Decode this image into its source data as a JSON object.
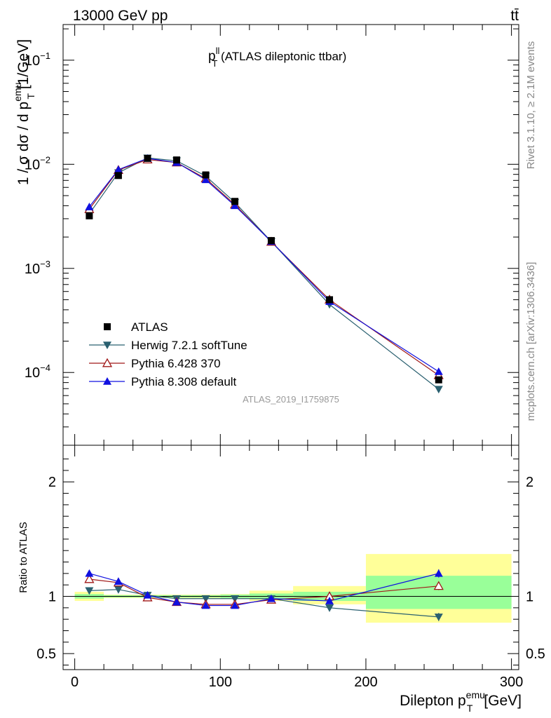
{
  "header": {
    "energy": "13000 GeV pp",
    "process": "tt̄"
  },
  "side_labels": {
    "rivet": "Rivet 3.1.10, ≥ 2.1M events",
    "mcplots": "mcplots.cern.ch [arXiv:1306.3436]"
  },
  "chart_data": [
    {
      "type": "scatter",
      "title_main": "p",
      "title_sup": "ll",
      "title_sub": "T",
      "title_rest": " (ATLAS dileptonic ttbar)",
      "ylabel": "1 / σ  dσ / d p",
      "ylabel_sup": "emu",
      "ylabel_sub": "T",
      "ylabel_unit": " [1/GeV]",
      "ylog": true,
      "ylim": [
        2e-05,
        0.22
      ],
      "xlim": [
        -8,
        305
      ],
      "y_ticks": [
        {
          "value": 0.1,
          "label": "10",
          "exp": "−1"
        },
        {
          "value": 0.01,
          "label": "10",
          "exp": "−2"
        },
        {
          "value": 0.001,
          "label": "10",
          "exp": "−3"
        },
        {
          "value": 0.0001,
          "label": "10",
          "exp": "−4"
        }
      ],
      "watermark": "ATLAS_2019_I1759875",
      "legend_position": "lower-left",
      "x": [
        10,
        30,
        50,
        70,
        90,
        110,
        135,
        175,
        250
      ],
      "series": [
        {
          "name": "ATLAS",
          "color": "#000000",
          "marker": "square",
          "values": [
            0.0032,
            0.0078,
            0.0114,
            0.011,
            0.0079,
            0.0044,
            0.00185,
            0.0005,
            8.5e-05
          ]
        },
        {
          "name": "Herwig 7.2.1 softTune",
          "color": "#2a6070",
          "marker": "triangle-down",
          "values": [
            0.00335,
            0.0083,
            0.0115,
            0.0108,
            0.0077,
            0.0043,
            0.00181,
            0.00045,
            6.9e-05
          ]
        },
        {
          "name": "Pythia 6.428 370",
          "color": "#a01818",
          "marker": "triangle-up-open",
          "values": [
            0.0037,
            0.0088,
            0.0111,
            0.0104,
            0.0073,
            0.0041,
            0.0018,
            0.0005,
            9.4e-05
          ]
        },
        {
          "name": "Pythia 8.308 default",
          "color": "#1010e0",
          "marker": "triangle-up",
          "values": [
            0.0039,
            0.0089,
            0.0114,
            0.0104,
            0.0071,
            0.004,
            0.00181,
            0.00048,
            0.000102
          ]
        }
      ]
    },
    {
      "type": "scatter",
      "ylabel": "Ratio to ATLAS",
      "ylim": [
        0.36,
        2.32
      ],
      "xlim": [
        -8,
        305
      ],
      "y_ticks": [
        {
          "value": 2,
          "label": "2"
        },
        {
          "value": 1,
          "label": "1"
        },
        {
          "value": 0.5,
          "label": "0.5"
        }
      ],
      "x_ticks": [
        0,
        100,
        200,
        300
      ],
      "xlabel": "Dilepton p",
      "xlabel_sup": "emu",
      "xlabel_sub": "T",
      "xlabel_unit": " [GeV]",
      "bins": [
        [
          0,
          20
        ],
        [
          20,
          40
        ],
        [
          40,
          60
        ],
        [
          60,
          80
        ],
        [
          80,
          100
        ],
        [
          100,
          120
        ],
        [
          120,
          150
        ],
        [
          150,
          200
        ],
        [
          200,
          300
        ]
      ],
      "band_stat": [
        [
          0.98,
          1.02
        ],
        [
          0.99,
          1.01
        ],
        [
          0.99,
          1.01
        ],
        [
          0.99,
          1.01
        ],
        [
          0.99,
          1.01
        ],
        [
          0.985,
          1.015
        ],
        [
          0.975,
          1.025
        ],
        [
          0.96,
          1.04
        ],
        [
          0.89,
          1.18
        ]
      ],
      "band_total": [
        [
          0.96,
          1.04
        ],
        [
          0.985,
          1.015
        ],
        [
          0.985,
          1.015
        ],
        [
          0.985,
          1.015
        ],
        [
          0.985,
          1.015
        ],
        [
          0.98,
          1.02
        ],
        [
          0.96,
          1.05
        ],
        [
          0.93,
          1.09
        ],
        [
          0.77,
          1.37
        ]
      ],
      "x": [
        10,
        30,
        50,
        70,
        90,
        110,
        135,
        175,
        250
      ],
      "series": [
        {
          "name": "Herwig 7.2.1 softTune",
          "color": "#2a6070",
          "marker": "triangle-down",
          "values": [
            1.05,
            1.06,
            1.01,
            0.98,
            0.98,
            0.98,
            0.98,
            0.9,
            0.82
          ]
        },
        {
          "name": "Pythia 6.428 370",
          "color": "#a01818",
          "marker": "triangle-up-open",
          "values": [
            1.15,
            1.12,
            0.99,
            0.95,
            0.93,
            0.93,
            0.97,
            1.0,
            1.09
          ]
        },
        {
          "name": "Pythia 8.308 default",
          "color": "#1010e0",
          "marker": "triangle-up",
          "values": [
            1.2,
            1.13,
            1.01,
            0.95,
            0.92,
            0.92,
            0.98,
            0.96,
            1.2
          ]
        }
      ]
    }
  ]
}
